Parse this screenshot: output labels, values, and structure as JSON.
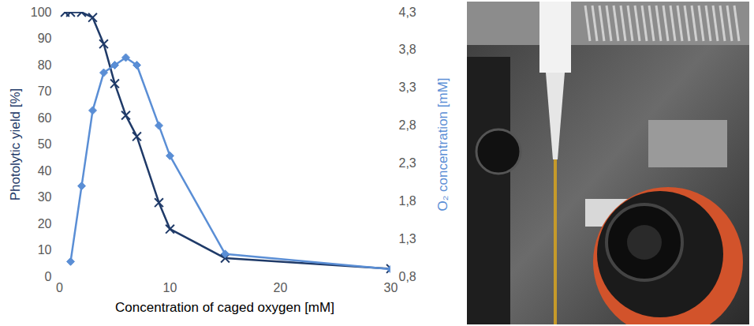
{
  "chart_data": {
    "type": "line",
    "x_label": "Concentration of caged oxygen [mM]",
    "xlim": [
      0,
      30
    ],
    "xticks": [
      0,
      10,
      20,
      30
    ],
    "ylim": [
      0,
      100
    ],
    "yticks": [
      0,
      10,
      20,
      30,
      40,
      50,
      60,
      70,
      80,
      90,
      100
    ],
    "y2lim": [
      0.8,
      4.3
    ],
    "y2ticks": [
      {
        "value": 0.8,
        "label": "0,8"
      },
      {
        "value": 1.3,
        "label": "1,3"
      },
      {
        "value": 1.8,
        "label": "1,8"
      },
      {
        "value": 2.3,
        "label": "2,3"
      },
      {
        "value": 2.8,
        "label": "2,8"
      },
      {
        "value": 3.3,
        "label": "3,3"
      },
      {
        "value": 3.8,
        "label": "3,8"
      },
      {
        "value": 4.3,
        "label": "4,3"
      }
    ],
    "grid": false,
    "series": [
      {
        "name": "Photolytic yield [%]",
        "color": "#1f3a68",
        "marker": "x",
        "x": [
          0.5,
          1,
          2,
          3,
          4,
          5,
          6,
          7,
          9,
          10,
          15,
          30
        ],
        "values": [
          100,
          100,
          100,
          98,
          88,
          73,
          61,
          53,
          28,
          18,
          7,
          3
        ]
      },
      {
        "name": "O₂ concentration [mM]",
        "color": "#5a8ed5",
        "marker": "diamond",
        "axis": "y2",
        "x": [
          1,
          2,
          3,
          4,
          5,
          6,
          7,
          9,
          10,
          15,
          30
        ],
        "values": [
          1.0,
          2.0,
          3.0,
          3.5,
          3.6,
          3.7,
          3.6,
          2.8,
          2.4,
          1.1,
          0.9
        ]
      }
    ]
  }
}
